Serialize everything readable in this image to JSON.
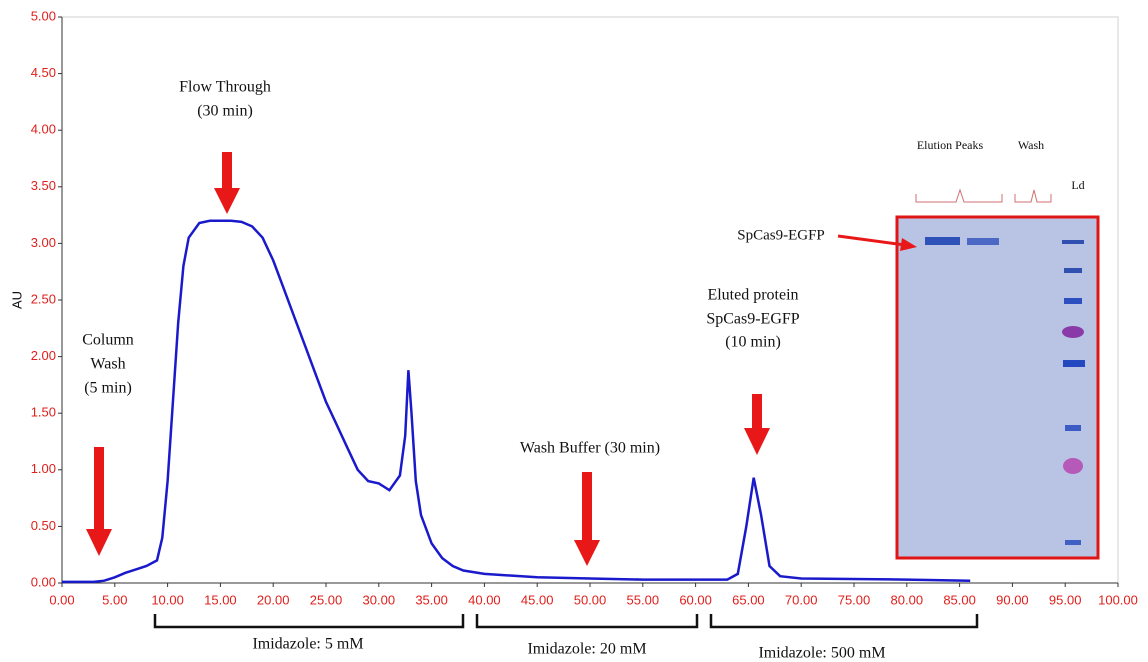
{
  "chart_data": {
    "type": "line",
    "y_label": "AU",
    "color": "#1a1acc",
    "x": [
      0,
      3,
      4,
      5,
      6,
      7,
      8,
      9,
      9.5,
      10,
      10.5,
      11,
      11.5,
      12,
      13,
      14,
      16,
      17,
      18,
      19,
      20,
      21,
      22,
      23,
      24,
      25,
      26,
      27,
      28,
      29,
      30,
      31,
      32,
      32.5,
      32.8,
      33.1,
      33.5,
      34,
      35,
      36,
      37,
      38,
      40,
      45,
      50,
      55,
      60,
      63,
      64,
      64.8,
      65.5,
      66.2,
      67,
      68,
      70,
      80,
      86
    ],
    "values": [
      0.01,
      0.01,
      0.02,
      0.05,
      0.09,
      0.12,
      0.15,
      0.2,
      0.4,
      0.9,
      1.6,
      2.3,
      2.8,
      3.05,
      3.18,
      3.2,
      3.2,
      3.19,
      3.15,
      3.05,
      2.85,
      2.6,
      2.35,
      2.1,
      1.85,
      1.6,
      1.4,
      1.2,
      1.0,
      0.9,
      0.88,
      0.82,
      0.95,
      1.3,
      1.88,
      1.5,
      0.9,
      0.6,
      0.35,
      0.22,
      0.15,
      0.11,
      0.08,
      0.05,
      0.04,
      0.03,
      0.03,
      0.03,
      0.08,
      0.5,
      0.93,
      0.6,
      0.15,
      0.06,
      0.04,
      0.03,
      0.02
    ],
    "xlim": [
      0,
      100
    ],
    "ylim": [
      0,
      5
    ],
    "xticks": [
      {
        "value": 0,
        "label": "0.00"
      },
      {
        "value": 5,
        "label": "5.00"
      },
      {
        "value": 10,
        "label": "10.00"
      },
      {
        "value": 15,
        "label": "15.00"
      },
      {
        "value": 20,
        "label": "20.00"
      },
      {
        "value": 25,
        "label": "25.00"
      },
      {
        "value": 30,
        "label": "30.00"
      },
      {
        "value": 35,
        "label": "35.00"
      },
      {
        "value": 40,
        "label": "40.00"
      },
      {
        "value": 45,
        "label": "45.00"
      },
      {
        "value": 50,
        "label": "50.00"
      },
      {
        "value": 55,
        "label": "55.00"
      },
      {
        "value": 60,
        "label": "60.00"
      },
      {
        "value": 65,
        "label": "65.00"
      },
      {
        "value": 70,
        "label": "70.00"
      },
      {
        "value": 75,
        "label": "75.00"
      },
      {
        "value": 80,
        "label": "80.00"
      },
      {
        "value": 85,
        "label": "85.00"
      },
      {
        "value": 90,
        "label": "90.00"
      },
      {
        "value": 95,
        "label": "95.00"
      },
      {
        "value": 100,
        "label": "100.00"
      }
    ],
    "yticks": [
      {
        "value": 0,
        "label": "0.00"
      },
      {
        "value": 0.5,
        "label": "0.50"
      },
      {
        "value": 1,
        "label": "1.00"
      },
      {
        "value": 1.5,
        "label": "1.50"
      },
      {
        "value": 2,
        "label": "2.00"
      },
      {
        "value": 2.5,
        "label": "2.50"
      },
      {
        "value": 3,
        "label": "3.00"
      },
      {
        "value": 3.5,
        "label": "3.50"
      },
      {
        "value": 4,
        "label": "4.00"
      },
      {
        "value": 4.5,
        "label": "4.50"
      },
      {
        "value": 5,
        "label": "5.00"
      }
    ],
    "annotations": [
      "Flow Through",
      "(30 min)",
      "Column",
      "Wash",
      "(5 min)",
      "Wash Buffer (30 min)",
      "Eluted protein",
      "SpCas9-EGFP",
      "(10 min)"
    ],
    "brackets": [
      "Imidazole: 5 mM",
      "Imidazole: 20 mM",
      "Imidazole: 500 mM"
    ],
    "inset": {
      "labels": [
        "Elution Peaks",
        "Wash",
        "Ld"
      ],
      "band_label": "SpCas9-EGFP"
    }
  }
}
